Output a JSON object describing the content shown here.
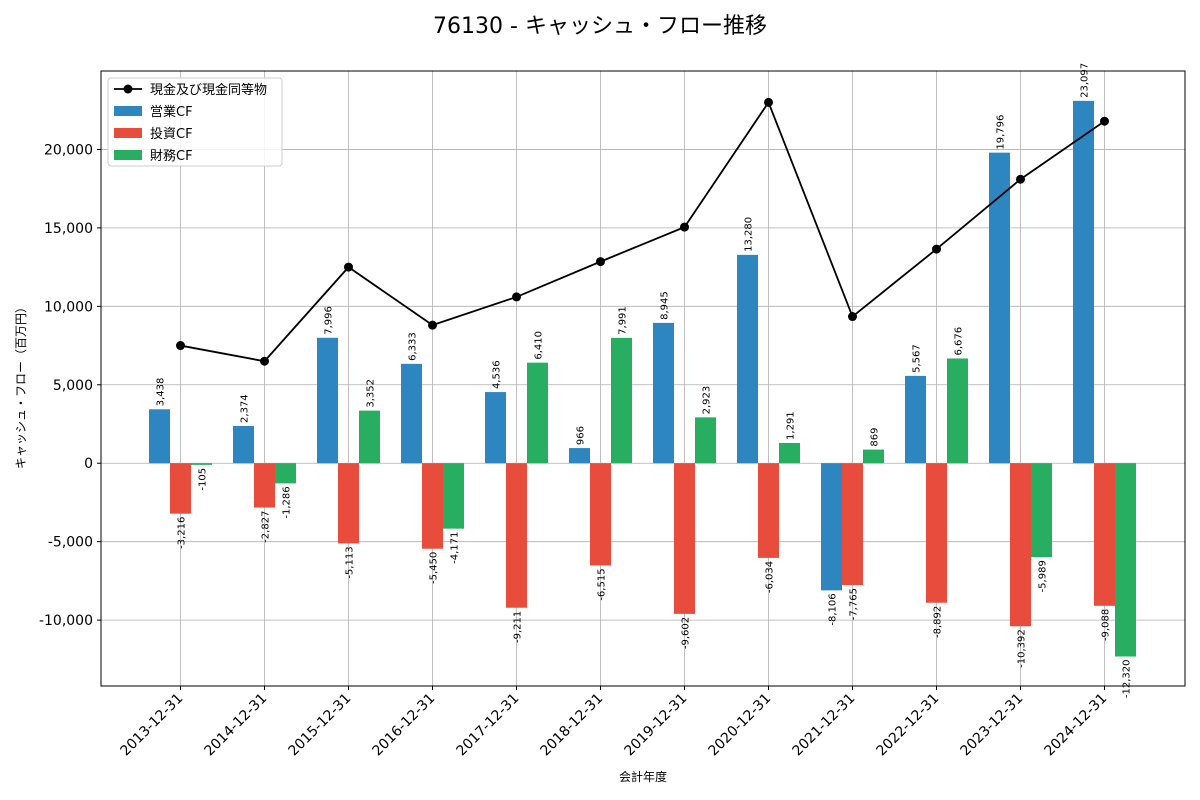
{
  "chart_data": {
    "type": "bar",
    "title": "76130 - キャッシュ・フロー推移",
    "xlabel": "会計年度",
    "ylabel": "キャッシュ・フロー（百万円）",
    "categories": [
      "2013-12-31",
      "2014-12-31",
      "2015-12-31",
      "2016-12-31",
      "2017-12-31",
      "2018-12-31",
      "2019-12-31",
      "2020-12-31",
      "2021-12-31",
      "2022-12-31",
      "2023-12-31",
      "2024-12-31"
    ],
    "ylim": [
      -14200,
      25000
    ],
    "yticks": [
      -10000,
      -5000,
      0,
      5000,
      10000,
      15000,
      20000
    ],
    "ytick_labels": [
      "-10,000",
      "-5,000",
      "0",
      "5,000",
      "10,000",
      "15,000",
      "20,000"
    ],
    "grid": true,
    "legend_position": "top-left",
    "series": [
      {
        "name": "営業CF",
        "kind": "bar",
        "color": "#2e86c1",
        "values": [
          3438,
          2374,
          7996,
          6333,
          4536,
          966,
          8945,
          13280,
          -8106,
          5567,
          19796,
          23097
        ],
        "labels": [
          "3,438",
          "2,374",
          "7,996",
          "6,333",
          "4,536",
          "966",
          "8,945",
          "13,280",
          "-8,106",
          "5,567",
          "19,796",
          "23,097"
        ]
      },
      {
        "name": "投資CF",
        "kind": "bar",
        "color": "#e74c3c",
        "values": [
          -3216,
          -2827,
          -5113,
          -5450,
          -9211,
          -6515,
          -9602,
          -6034,
          -7765,
          -8892,
          -10392,
          -9088
        ],
        "labels": [
          "-3,216",
          "-2,827",
          "-5,113",
          "-5,450",
          "-9,211",
          "-6,515",
          "-9,602",
          "-6,034",
          "-7,765",
          "-8,892",
          "-10,392",
          "-9,088"
        ]
      },
      {
        "name": "財務CF",
        "kind": "bar",
        "color": "#27ae60",
        "values": [
          -105,
          -1286,
          3352,
          -4171,
          6410,
          7991,
          2923,
          1291,
          869,
          6676,
          -5989,
          -12320
        ],
        "labels": [
          "-105",
          "-1,286",
          "3,352",
          "-4,171",
          "6,410",
          "7,991",
          "2,923",
          "1,291",
          "869",
          "6,676",
          "-5,989",
          "-12,320"
        ]
      },
      {
        "name": "現金及び現金同等物",
        "kind": "line",
        "color": "#000000",
        "values": [
          7500,
          6500,
          12500,
          8800,
          10600,
          12850,
          15050,
          23000,
          9350,
          13650,
          18100,
          21800
        ]
      }
    ]
  }
}
